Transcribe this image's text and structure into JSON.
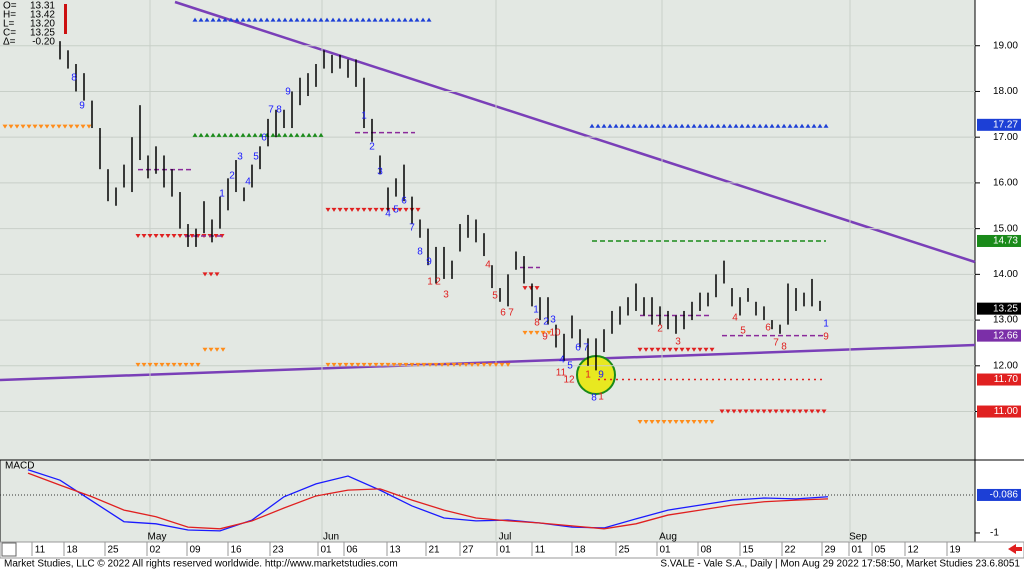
{
  "chart_data": {
    "type": "ohlc",
    "title": "S.VALE - Vale S.A., Daily | Mon Aug 29 2022 17:58:50, Market Studies 23.6.8051",
    "footer": "Market Studies, LLC © 2022 All rights reserved worldwide. http://www.marketstudies.com",
    "legend": [
      {
        "name": "O=",
        "value": 13.31,
        "label": "13.31"
      },
      {
        "name": "H=",
        "value": 13.42,
        "label": "13.42"
      },
      {
        "name": "L=",
        "value": 13.2,
        "label": "13.20"
      },
      {
        "name": "C=",
        "value": 13.25,
        "label": "13.25"
      },
      {
        "name": "Δ=",
        "value": -0.2,
        "label": "-0.20"
      }
    ],
    "ylim": [
      9.94,
      20.0
    ],
    "yticks": [
      {
        "value": 11,
        "label": "11.00"
      },
      {
        "value": 12,
        "label": "12.00"
      },
      {
        "value": 13,
        "label": "13.00"
      },
      {
        "value": 14,
        "label": "14.00"
      },
      {
        "value": 15,
        "label": "15.00"
      },
      {
        "value": 16,
        "label": "16.00"
      },
      {
        "value": 17,
        "label": "17.00"
      },
      {
        "value": 18,
        "label": "18.00"
      },
      {
        "value": 19,
        "label": "19.00"
      }
    ],
    "grid": true,
    "color": "#000000",
    "high": [
      null,
      null,
      null,
      null,
      19.1,
      18.9,
      18.6,
      18.4,
      17.8,
      17.2,
      16.3,
      15.9,
      16.4,
      17.0,
      17.7,
      16.6,
      16.8,
      16.6,
      16.3,
      15.8,
      15.1,
      15.0,
      15.6,
      15.2,
      15.7,
      16.1,
      16.5,
      15.9,
      16.4,
      16.8,
      17.4,
      17.6,
      17.6,
      18.0,
      18.3,
      18.4,
      18.6,
      18.9,
      18.8,
      18.8,
      18.7,
      18.7,
      18.3,
      17.4,
      16.6,
      15.9,
      16.1,
      16.4,
      15.7,
      15.2,
      15.0,
      14.6,
      14.6,
      14.3,
      15.1,
      15.3,
      15.2,
      14.9,
      14.2,
      13.7,
      14.0,
      14.5,
      14.4,
      13.8,
      13.5,
      13.5,
      12.9,
      12.7,
      13.1,
      12.8,
      12.6,
      12.6,
      12.8,
      13.2,
      13.3,
      13.5,
      13.8,
      13.5,
      13.5,
      13.3,
      13.2,
      13.1,
      13.2,
      13.4,
      13.6,
      13.6,
      14.0,
      14.3,
      13.7,
      13.5,
      13.7,
      13.4,
      13.3,
      13.0,
      12.9,
      13.8,
      13.7,
      13.6,
      13.9,
      13.42
    ],
    "low": [
      null,
      null,
      null,
      null,
      18.7,
      18.5,
      18.0,
      17.8,
      17.2,
      16.3,
      15.6,
      15.5,
      15.9,
      15.8,
      16.5,
      16.1,
      16.2,
      15.9,
      15.7,
      15.0,
      14.6,
      14.6,
      14.9,
      14.7,
      15.0,
      15.4,
      15.8,
      15.6,
      15.9,
      16.3,
      16.8,
      17.0,
      17.2,
      17.2,
      17.7,
      17.9,
      18.1,
      18.5,
      18.4,
      18.5,
      18.3,
      18.1,
      17.2,
      16.9,
      16.2,
      15.4,
      15.7,
      15.6,
      15.1,
      14.8,
      14.2,
      13.8,
      13.9,
      13.9,
      14.5,
      14.8,
      14.7,
      14.4,
      13.7,
      13.4,
      13.3,
      14.1,
      13.8,
      13.3,
      13.0,
      12.9,
      12.4,
      12.1,
      12.6,
      12.4,
      12.0,
      11.9,
      12.3,
      12.7,
      12.9,
      13.1,
      13.2,
      13.1,
      12.9,
      12.9,
      12.8,
      12.7,
      12.8,
      13.0,
      13.2,
      13.3,
      13.5,
      13.8,
      13.3,
      13.1,
      13.4,
      13.1,
      13.0,
      12.8,
      12.7,
      12.9,
      13.2,
      13.3,
      13.3,
      13.2
    ],
    "price_markers": [
      {
        "value": 17.27,
        "label": "17.27",
        "color": "#1c3fd6"
      },
      {
        "value": 14.73,
        "label": "14.73",
        "color": "#1a8a1a"
      },
      {
        "value": 13.25,
        "label": "13.25",
        "color": "#000000"
      },
      {
        "value": 12.66,
        "label": "12.66",
        "color": "#7b2fa8"
      },
      {
        "value": 11.7,
        "label": "11.70",
        "color": "#e02020"
      },
      {
        "value": 11.0,
        "label": "11.00",
        "color": "#e02020"
      }
    ],
    "levels": [
      {
        "value": 19.57,
        "color": "#1c3fd6",
        "style": "up"
      },
      {
        "value": 17.23,
        "color": "#ff8c1a",
        "style": "down"
      },
      {
        "value": 17.05,
        "color": "#1a8a1a",
        "style": "up"
      },
      {
        "value": 17.1,
        "color": "#8a2a9a",
        "style": "dash"
      },
      {
        "value": 17.25,
        "color": "#1c3fd6",
        "style": "up"
      },
      {
        "value": 16.29,
        "color": "#8a2a9a",
        "style": "dash"
      },
      {
        "value": 15.41,
        "color": "#e02020",
        "style": "down"
      },
      {
        "value": 14.84,
        "color": "#e02020",
        "style": "down"
      },
      {
        "value": 14.84,
        "color": "#8a2a9a",
        "style": "dash"
      },
      {
        "value": 14.73,
        "color": "#1a8a1a",
        "style": "dash"
      },
      {
        "value": 14.0,
        "color": "#e02020",
        "style": "down"
      },
      {
        "value": 14.15,
        "color": "#8a2a9a",
        "style": "dash"
      },
      {
        "value": 13.7,
        "color": "#e02020",
        "style": "down"
      },
      {
        "value": 13.1,
        "color": "#8a2a9a",
        "style": "dash"
      },
      {
        "value": 12.72,
        "color": "#ff8c1a",
        "style": "down"
      },
      {
        "value": 12.66,
        "color": "#8a2a9a",
        "style": "dash"
      },
      {
        "value": 12.35,
        "color": "#ff8c1a",
        "style": "down"
      },
      {
        "value": 12.35,
        "color": "#e02020",
        "style": "down"
      },
      {
        "value": 12.02,
        "color": "#ff8c1a",
        "style": "down"
      },
      {
        "value": 12.02,
        "color": "#ff8c1a",
        "style": "down"
      },
      {
        "value": 11.7,
        "color": "#e02020",
        "style": "dot"
      },
      {
        "value": 11.0,
        "color": "#e02020",
        "style": "down"
      },
      {
        "value": 10.77,
        "color": "#ff8c1a",
        "style": "down"
      }
    ],
    "counts": [
      {
        "text": "8",
        "color": "#1a1aff"
      },
      {
        "text": "9",
        "color": "#1a1aff",
        "size": "big"
      },
      {
        "text": "1",
        "color": "#1a1aff"
      },
      {
        "text": "2",
        "color": "#1a1aff"
      },
      {
        "text": "3",
        "color": "#1a1aff"
      },
      {
        "text": "4",
        "color": "#1a1aff"
      },
      {
        "text": "5",
        "color": "#1a1aff"
      },
      {
        "text": "6",
        "color": "#1a1aff"
      },
      {
        "text": "7",
        "color": "#1a1aff"
      },
      {
        "text": "8",
        "color": "#1a1aff"
      },
      {
        "text": "9",
        "color": "#1a1aff",
        "size": "big"
      },
      {
        "text": "1",
        "color": "#1a1aff"
      },
      {
        "text": "2",
        "color": "#1a1aff"
      },
      {
        "text": "3",
        "color": "#1a1aff"
      },
      {
        "text": "4",
        "color": "#1a1aff"
      },
      {
        "text": "5",
        "color": "#1a1aff"
      },
      {
        "text": "6",
        "color": "#1a1aff"
      },
      {
        "text": "7",
        "color": "#1a1aff"
      },
      {
        "text": "8",
        "color": "#1a1aff"
      },
      {
        "text": "9",
        "color": "#1a1aff",
        "size": "big"
      },
      {
        "text": "1",
        "color": "#1a1aff"
      },
      {
        "text": "2",
        "color": "#1a1aff"
      },
      {
        "text": "3",
        "color": "#1a1aff"
      },
      {
        "text": "4",
        "color": "#1a1aff"
      },
      {
        "text": "5",
        "color": "#1a1aff"
      },
      {
        "text": "6",
        "color": "#1a1aff"
      },
      {
        "text": "7",
        "color": "#1a1aff"
      },
      {
        "text": "8",
        "color": "#1a1aff"
      },
      {
        "text": "1",
        "color": "#1a1aff"
      },
      {
        "text": "1",
        "color": "#e02020"
      },
      {
        "text": "2",
        "color": "#e02020"
      },
      {
        "text": "3",
        "color": "#e02020"
      },
      {
        "text": "4",
        "color": "#e02020"
      },
      {
        "text": "5",
        "color": "#e02020"
      },
      {
        "text": "6",
        "color": "#e02020"
      },
      {
        "text": "7",
        "color": "#e02020"
      },
      {
        "text": "8",
        "color": "#e02020"
      },
      {
        "text": "9",
        "color": "#e02020"
      },
      {
        "text": "10",
        "color": "#e02020"
      },
      {
        "text": "11",
        "color": "#e02020"
      },
      {
        "text": "12",
        "color": "#e02020"
      },
      {
        "text": "1",
        "color": "#e02020"
      },
      {
        "text": "2",
        "color": "#e02020"
      },
      {
        "text": "3",
        "color": "#e02020"
      },
      {
        "text": "4",
        "color": "#e02020"
      },
      {
        "text": "5",
        "color": "#e02020"
      },
      {
        "text": "6",
        "color": "#e02020"
      },
      {
        "text": "7",
        "color": "#e02020"
      },
      {
        "text": "8",
        "color": "#e02020"
      },
      {
        "text": "9",
        "color": "#e02020"
      },
      {
        "text": "1",
        "color": "#e02020",
        "size": "big"
      },
      {
        "text": "9",
        "color": "#1a1aff",
        "size": "big"
      }
    ],
    "x_labels": [
      "11",
      "18",
      "25",
      "02",
      "09",
      "16",
      "23",
      "01",
      "06",
      "13",
      "21",
      "27",
      "01",
      "11",
      "18",
      "25",
      "01",
      "08",
      "15",
      "22",
      "29",
      "01",
      "05",
      "12",
      "19"
    ],
    "months": [
      "May",
      "Jun",
      "Jul",
      "Aug",
      "Sep"
    ],
    "macd": {
      "title": "MACD",
      "ylim": [
        -1.29,
        0.755
      ],
      "yticks": [
        -1
      ],
      "marker": -0.086,
      "x": [
        0,
        4,
        8,
        12,
        16,
        20,
        24,
        28,
        32,
        36,
        40,
        44,
        48,
        52,
        56,
        60,
        64,
        68,
        72,
        76,
        80,
        84,
        88,
        92,
        96,
        100
      ],
      "series": [
        {
          "color": "#1a1aff",
          "values": [
            0.52,
            0.27,
            -0.23,
            -0.73,
            -0.78,
            -0.93,
            -0.95,
            -0.69,
            -0.13,
            0.18,
            0.37,
            0.03,
            -0.35,
            -0.64,
            -0.71,
            -0.69,
            -0.76,
            -0.86,
            -0.88,
            -0.66,
            -0.45,
            -0.33,
            -0.21,
            -0.16,
            -0.18,
            -0.13
          ]
        },
        {
          "color": "#e02020",
          "values": [
            0.44,
            0.15,
            -0.13,
            -0.45,
            -0.61,
            -0.86,
            -0.9,
            -0.71,
            -0.4,
            -0.11,
            0.03,
            0.06,
            -0.21,
            -0.45,
            -0.64,
            -0.71,
            -0.76,
            -0.83,
            -0.9,
            -0.78,
            -0.57,
            -0.45,
            -0.33,
            -0.25,
            -0.21,
            -0.18
          ]
        }
      ]
    }
  }
}
